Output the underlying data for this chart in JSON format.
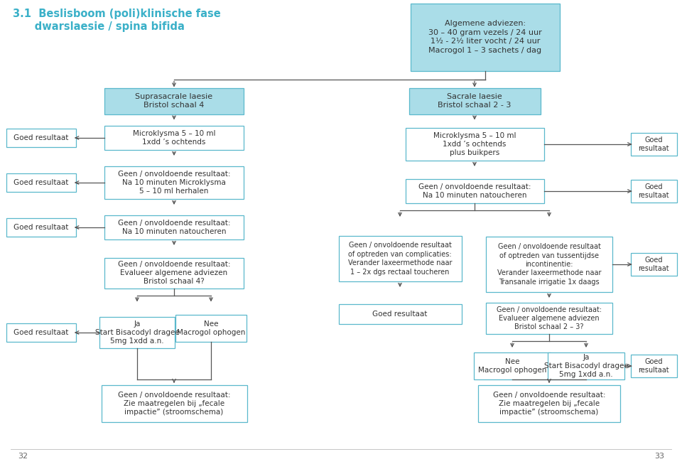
{
  "bg_color": "#ffffff",
  "light_blue": "#aadde8",
  "white": "#ffffff",
  "edge_color": "#5ab8cc",
  "arrow_color": "#555555",
  "title_color": "#3ab0c8",
  "title_line1": "3.1  Beslisboom (poli)klinische fase",
  "title_line2": "      dwarslaesie / spina bifida",
  "top_box": "Algemene adviezen:\n30 – 40 gram vezels / 24 uur\n1½ - 2½ liter vocht / 24 uur\nMacrogol 1 – 3 sachets / dag",
  "L_sup": "Suprasacrale laesie\nBristol schaal 4",
  "L_micro1": "Microklysma 5 – 10 ml\n1xdd ’s ochtends",
  "L_geen2": "Geen / onvoldoende resultaat:\nNa 10 minuten Microklysma\n5 – 10 ml herhalen",
  "L_geen3": "Geen / onvoldoende resultaat:\nNa 10 minuten natoucheren",
  "L_geen4": "Geen / onvoldoende resultaat:\nEvalueer algemene adviezen\nBristol schaal 4?",
  "L_ja5": "Ja\nStart Bisacodyl dragee\n5mg 1xdd a.n.",
  "L_nee5": "Nee\nMacrogol ophogen",
  "L_fecale": "Geen / onvoldoende resultaat:\nZie maatregelen bij „fecale\nimpactie” (stroomschema)",
  "R_sac": "Sacrale laesie\nBristol schaal 2 - 3",
  "R_micro1": "Microklysma 5 – 10 ml\n1xdd ’s ochtends\nplus buikpers",
  "R_geen2": "Geen / onvoldoende resultaat:\nNa 10 minuten natoucheren",
  "R_comp": "Geen / onvoldoende resultaat\nof optreden van complicaties:\nVerander laxeermethode naar\n1 – 2x dgs rectaal toucheren",
  "R_inco": "Geen / onvoldoende resultaat\nof optreden van tussentijdse\nincontinentie:\nVerander laxeermethode naar\nTransanale irrigatie 1x daags",
  "R_goed4a": "Goed resultaat",
  "R_geen4b": "Geen / onvoldoende resultaat:\nEvalueer algemene adviezen\nBristol schaal 2 – 3?",
  "R_nee5": "Nee\nMacrogol ophogen",
  "R_ja5": "Ja\nStart Bisacodyl dragee\n5mg 1xdd a.n.",
  "R_fecale": "Geen / onvoldoende resultaat:\nZie maatregelen bij „fecale\nimpactie” (stroomschema)",
  "goed_resultaat_side_lr": "Goed resultaat",
  "goed_resultaat_side_2": "Goed\nresultaat"
}
